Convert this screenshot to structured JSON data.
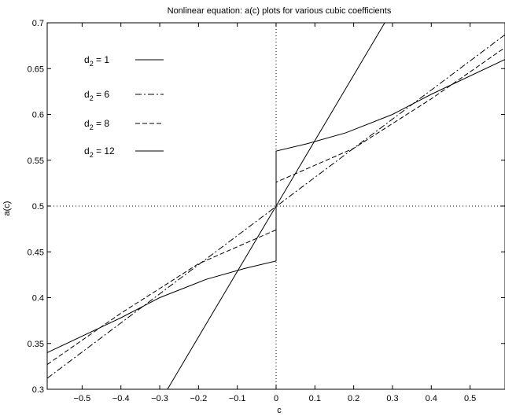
{
  "chart_data": {
    "type": "line",
    "title": "Nonlinear equation: a(c) plots for various cubic coefficients",
    "xlabel": "c",
    "ylabel": "a(c)",
    "xlim": [
      -0.59,
      0.59
    ],
    "ylim": [
      0.3,
      0.7
    ],
    "xticks": [
      -0.5,
      -0.4,
      -0.3,
      -0.2,
      -0.1,
      0,
      0.1,
      0.2,
      0.3,
      0.4,
      0.5
    ],
    "xtick_labels": [
      "−0.5",
      "−0.4",
      "−0.3",
      "−0.2",
      "−0.1",
      "0",
      "0.1",
      "0.2",
      "0.3",
      "0.4",
      "0.5"
    ],
    "yticks": [
      0.3,
      0.35,
      0.4,
      0.45,
      0.5,
      0.55,
      0.6,
      0.65,
      0.7
    ],
    "ytick_labels": [
      "0.3",
      "0.35",
      "0.4",
      "0.45",
      "0.5",
      "0.55",
      "0.6",
      "0.65",
      "0.7"
    ],
    "grid": false,
    "reference_lines": {
      "x": 0,
      "y": 0.5,
      "style": "dotted"
    },
    "legend_position": "top-left",
    "series": [
      {
        "name": "d2 = 1",
        "legend_base": "d",
        "legend_sub": "2",
        "legend_rest": " = 1",
        "style": "solid",
        "x": [
          -0.28,
          0.28
        ],
        "y": [
          0.3,
          0.7
        ]
      },
      {
        "name": "d2 = 6",
        "legend_base": "d",
        "legend_sub": "2",
        "legend_rest": " = 6",
        "style": "dashdot",
        "x": [
          -0.59,
          0.59
        ],
        "y": [
          0.312,
          0.687
        ]
      },
      {
        "name": "d2 = 8",
        "legend_base": "d",
        "legend_sub": "2",
        "legend_rest": " = 8",
        "style": "dashed",
        "x": [
          -0.59,
          -0.4,
          -0.2,
          0,
          0,
          0.2,
          0.4,
          0.59
        ],
        "y": [
          0.327,
          0.383,
          0.437,
          0.474,
          0.526,
          0.563,
          0.617,
          0.673
        ]
      },
      {
        "name": "d2 = 12",
        "legend_base": "d",
        "legend_sub": "2",
        "legend_rest": " = 12",
        "style": "solid",
        "x": [
          -0.59,
          -0.4,
          -0.3,
          -0.18,
          -0.08,
          0,
          0,
          0.08,
          0.18,
          0.3,
          0.4,
          0.59
        ],
        "y": [
          0.34,
          0.378,
          0.4,
          0.42,
          0.432,
          0.44,
          0.56,
          0.568,
          0.58,
          0.6,
          0.622,
          0.66
        ]
      }
    ]
  }
}
